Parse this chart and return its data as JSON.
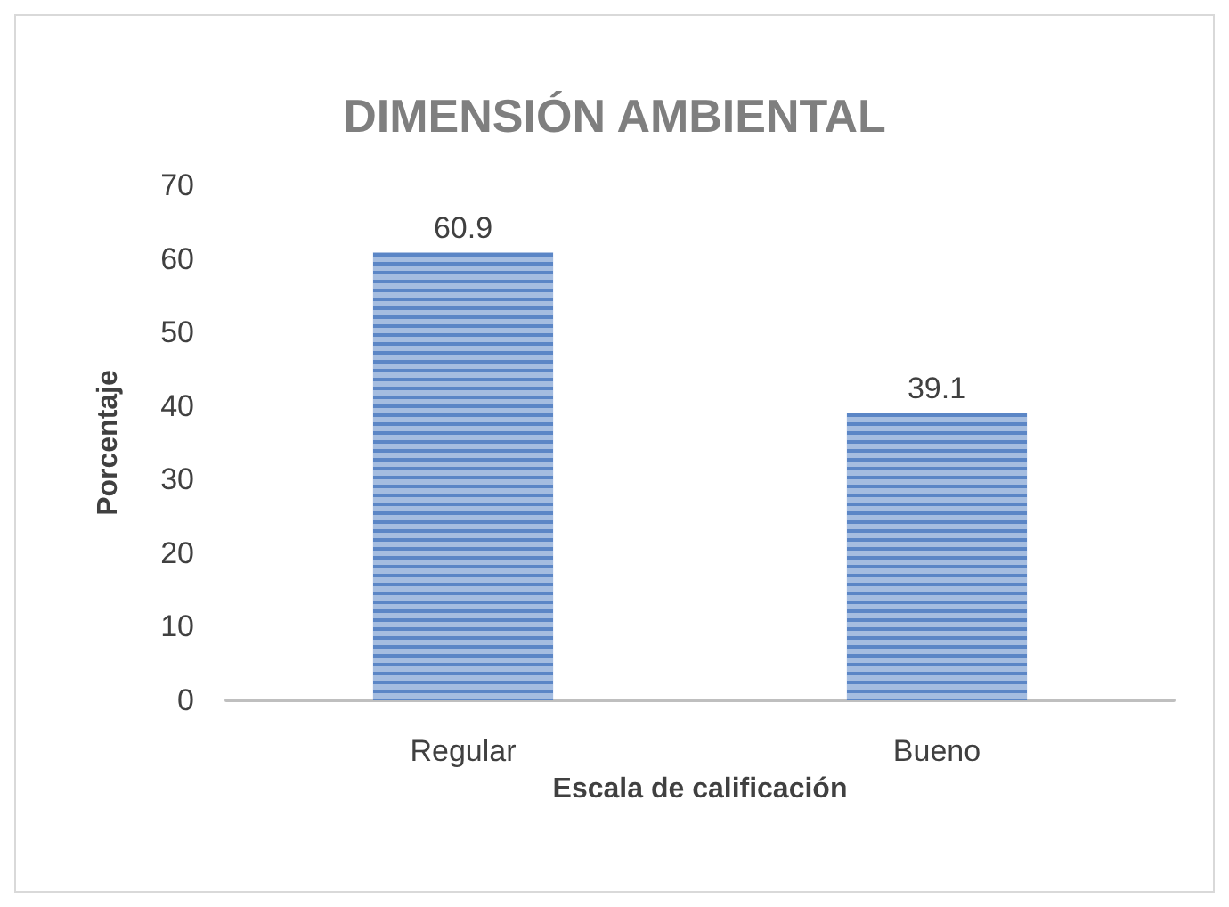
{
  "chart_data": {
    "type": "bar",
    "title": "DIMENSIÓN AMBIENTAL",
    "xlabel": "Escala de calificación",
    "ylabel": "Porcentaje",
    "categories": [
      "Regular",
      "Bueno"
    ],
    "values": [
      60.9,
      39.1
    ],
    "color": "#5b86c6",
    "ylim": [
      0,
      70
    ],
    "yticks": [
      0,
      10,
      20,
      30,
      40,
      50,
      60,
      70
    ],
    "grid": false,
    "data_labels": true
  }
}
